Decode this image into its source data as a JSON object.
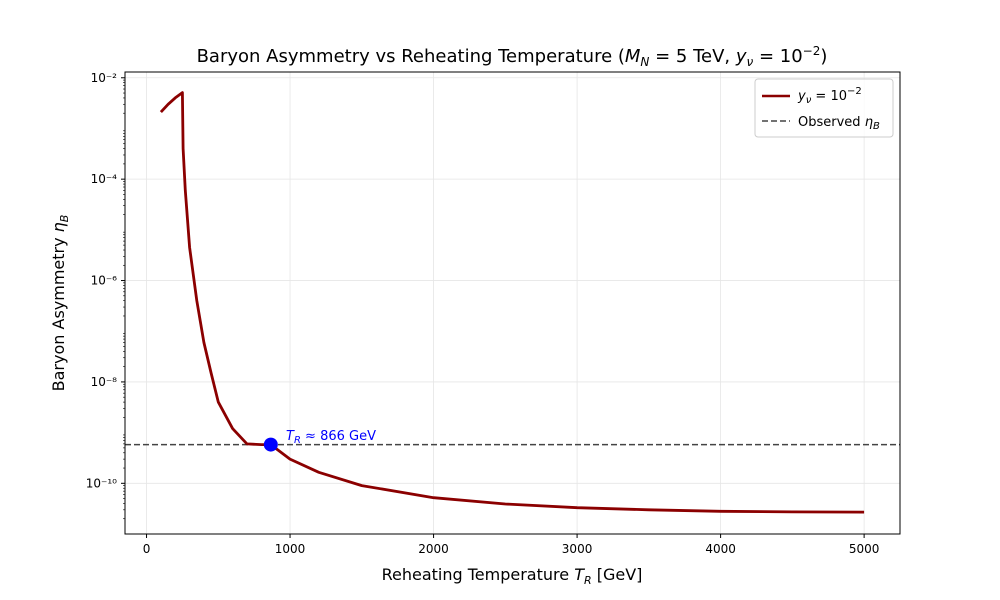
{
  "chart_data": {
    "type": "line",
    "title": "Baryon Asymmetry vs Reheating Temperature (M_N = 5 TeV, y_ν = 10⁻²)",
    "xlabel": "Reheating Temperature T_R [GeV]",
    "ylabel": "Baryon Asymmetry η_B",
    "x_scale": "linear",
    "y_scale": "log",
    "xlim": [
      -150,
      5250
    ],
    "ylim": [
      1e-11,
      0.013
    ],
    "x_ticks": [
      0,
      1000,
      2000,
      3000,
      4000,
      5000
    ],
    "x_tick_labels": [
      "0",
      "1000",
      "2000",
      "3000",
      "4000",
      "5000"
    ],
    "y_ticks": [
      1e-10,
      1e-08,
      1e-06,
      0.0001,
      0.01
    ],
    "y_tick_labels": [
      "10⁻¹⁰",
      "10⁻⁸",
      "10⁻⁶",
      "10⁻⁴",
      "10⁻²"
    ],
    "grid": true,
    "legend_position": "top-right",
    "legend": [
      "y_ν = 10⁻²",
      "Observed η_B"
    ],
    "series": [
      {
        "name": "y_ν = 10⁻²",
        "color": "#8b0000",
        "style": "solid",
        "x": [
          100,
          150,
          200,
          250,
          255,
          270,
          300,
          350,
          400,
          450,
          500,
          600,
          700,
          800,
          866,
          1000,
          1200,
          1500,
          2000,
          2500,
          3000,
          3500,
          4000,
          4500,
          5000
        ],
        "y": [
          0.0021,
          0.003,
          0.004,
          0.0051,
          0.0004,
          6e-05,
          4.5e-06,
          4e-07,
          6e-08,
          1.5e-08,
          4e-09,
          1.2e-09,
          6e-10,
          5.8e-10,
          5.8e-10,
          3e-10,
          1.65e-10,
          9e-11,
          5.2e-11,
          3.9e-11,
          3.3e-11,
          3e-11,
          2.8e-11,
          2.73e-11,
          2.7e-11
        ]
      },
      {
        "name": "Observed η_B",
        "color": "#444444",
        "style": "dashed",
        "y_const": 5.8e-10
      }
    ],
    "highlight_point": {
      "x": 866,
      "y": 5.8e-10,
      "color": "#0000ff"
    },
    "annotation": {
      "text": "T_R ≈ 866 GeV",
      "x": 866,
      "y": 5.8e-10,
      "color": "#0000ff"
    }
  }
}
